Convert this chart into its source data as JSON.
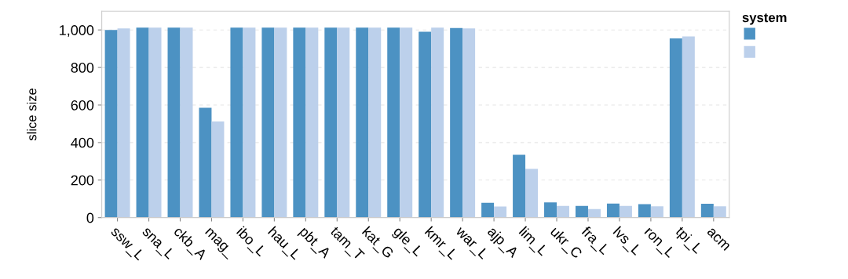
{
  "chart_data": {
    "type": "bar",
    "ylabel": "slice size",
    "legend_title": "system",
    "categories": [
      "ssw_L",
      "sna_L",
      "ckb_A",
      "mag_",
      "ibo_L",
      "hau_L",
      "pbt_A",
      "tam_T",
      "kat_G",
      "gle_L",
      "kmr_L",
      "war_L",
      "ajp_A",
      "lim_L",
      "ukr_C",
      "fra_L",
      "lvs_L",
      "ron_L",
      "tpi_L",
      "acm"
    ],
    "series": [
      {
        "color": "#4c92c3",
        "values": [
          1000,
          1012,
          1012,
          585,
          1012,
          1012,
          1012,
          1012,
          1012,
          1012,
          990,
          1010,
          79,
          335,
          81,
          62,
          75,
          72,
          955,
          74
        ]
      },
      {
        "color": "#bcd0eb",
        "values": [
          1008,
          1012,
          1012,
          512,
          1012,
          1012,
          1012,
          1012,
          1012,
          1012,
          1012,
          1008,
          59,
          260,
          62,
          46,
          62,
          60,
          965,
          60
        ]
      }
    ],
    "ylim": [
      0,
      1100
    ],
    "yticks": [
      0,
      200,
      400,
      600,
      800,
      {
        "value": 1000,
        "label": "1,000"
      }
    ],
    "grid": "y"
  }
}
